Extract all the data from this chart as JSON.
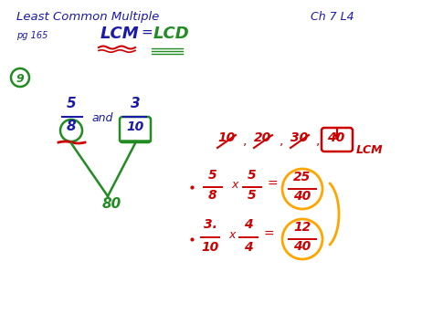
{
  "bg_color": "#ffffff",
  "title_text": "Least Common Multiple",
  "title_color": "#1a1aaa",
  "ch_text": "Ch 7 L4",
  "ch_color": "#1a1aaa",
  "pg_text": "pg 165",
  "pg_color": "#1a1aaa",
  "lcm_text": "LCM",
  "lcm_color": "#1a1aaa",
  "lcd_text": "LCD",
  "lcd_color": "#228B22",
  "nine_circle_color": "#228B22",
  "nine_text": "9",
  "nine_color": "#228B22",
  "frac1_num": "5",
  "frac1_den": "8",
  "frac1_color": "#1a1aaa",
  "frac2_num": "3",
  "frac2_den": "10",
  "frac2_color": "#1a1aaa",
  "and_text": "and",
  "and_color": "#1a1aaa",
  "circle8_color": "#228B22",
  "circle10_color": "#228B22",
  "underline8_color": "#cc0000",
  "underline10_color": "#228B22",
  "v_lines_color": "#228B22",
  "lcm_result": "80",
  "lcm_result_color": "#228B22",
  "multiples_color": "#cc0000",
  "lcm_label": "LCM",
  "lcm_label_color": "#cc0000",
  "arrow_color": "#cc0000",
  "box40_color": "#cc0000",
  "eq_color": "#cc0000",
  "result1_color": "#cc0000",
  "result2_color": "#cc0000",
  "circle_result_color": "#FFA500",
  "lcm_underline_color": "#cc0000",
  "lcd_underline_color": "#228B22"
}
